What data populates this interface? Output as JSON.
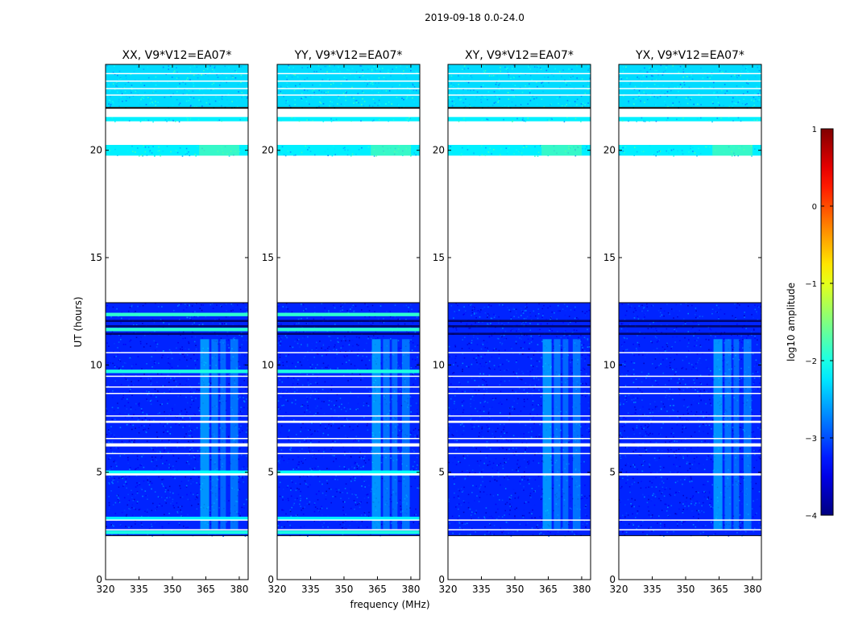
{
  "figure": {
    "suptitle": "2019-09-18 0.0-24.0"
  },
  "chart_data": {
    "type": "heatmap",
    "title": "2019-09-18 0.0-24.0",
    "xlabel": "frequency (MHz)",
    "ylabel": "UT (hours)",
    "xlim": [
      320,
      384
    ],
    "ylim": [
      0,
      24
    ],
    "x_ticks": [
      320,
      335,
      350,
      365,
      380
    ],
    "y_ticks": [
      0,
      5,
      10,
      15,
      20
    ],
    "panels": [
      {
        "title": "XX, V9*V12=EA07*",
        "pol": "XX"
      },
      {
        "title": "YY, V9*V12=EA07*",
        "pol": "YY"
      },
      {
        "title": "XY, V9*V12=EA07*",
        "pol": "XY"
      },
      {
        "title": "YX, V9*V12=EA07*",
        "pol": "YX"
      }
    ],
    "colorbar": {
      "label": "log10 amplitude",
      "range": [
        -4,
        1
      ],
      "ticks": [
        1,
        0,
        -1,
        -2,
        -3,
        -4
      ],
      "colormap": "jet"
    },
    "time_blocks_hours": [
      {
        "start": 2.05,
        "end": 12.9,
        "level": -3.2
      },
      {
        "start": 19.75,
        "end": 20.25,
        "level": -2.2
      },
      {
        "start": 21.35,
        "end": 21.55,
        "level": -2.2
      },
      {
        "start": 22.0,
        "end": 24.0,
        "level": -2.3
      }
    ],
    "flagged_gaps_hours": [
      {
        "start": 2.3,
        "end": 2.35
      },
      {
        "start": 2.75,
        "end": 2.8
      },
      {
        "start": 4.85,
        "end": 4.95
      },
      {
        "start": 5.85,
        "end": 5.9
      },
      {
        "start": 6.2,
        "end": 6.35
      },
      {
        "start": 6.55,
        "end": 6.6
      },
      {
        "start": 7.3,
        "end": 7.4
      },
      {
        "start": 7.6,
        "end": 7.65
      },
      {
        "start": 8.65,
        "end": 8.7
      },
      {
        "start": 8.95,
        "end": 9.0
      },
      {
        "start": 9.45,
        "end": 9.5
      },
      {
        "start": 10.55,
        "end": 10.6
      },
      {
        "start": 22.55,
        "end": 22.6
      },
      {
        "start": 22.85,
        "end": 22.9
      },
      {
        "start": 23.2,
        "end": 23.25
      },
      {
        "start": 23.55,
        "end": 23.6
      }
    ],
    "rfi_bands_mhz": [
      {
        "start": 362.5,
        "end": 366.5,
        "level": -2.2
      },
      {
        "start": 367.5,
        "end": 370.5,
        "level": -2.5
      },
      {
        "start": 371.5,
        "end": 374.0,
        "level": -2.6
      },
      {
        "start": 376.0,
        "end": 379.5,
        "level": -2.5
      }
    ],
    "rfi_time_range_hours": [
      2.3,
      11.2
    ],
    "bright_rows_hours": [
      {
        "t": 2.85,
        "level": -2.2,
        "pols": [
          "XX",
          "YY"
        ]
      },
      {
        "t": 5.0,
        "level": -2.1,
        "pols": [
          "XX",
          "YY"
        ]
      },
      {
        "t": 9.7,
        "level": -2.0,
        "pols": [
          "XX",
          "YY"
        ]
      },
      {
        "t": 11.65,
        "level": -1.9,
        "pols": [
          "XX",
          "YY"
        ]
      },
      {
        "t": 12.35,
        "level": -1.9,
        "pols": [
          "XX",
          "YY"
        ]
      },
      {
        "t": 2.2,
        "level": -2.0,
        "pols": [
          "XX",
          "YY"
        ]
      }
    ]
  }
}
